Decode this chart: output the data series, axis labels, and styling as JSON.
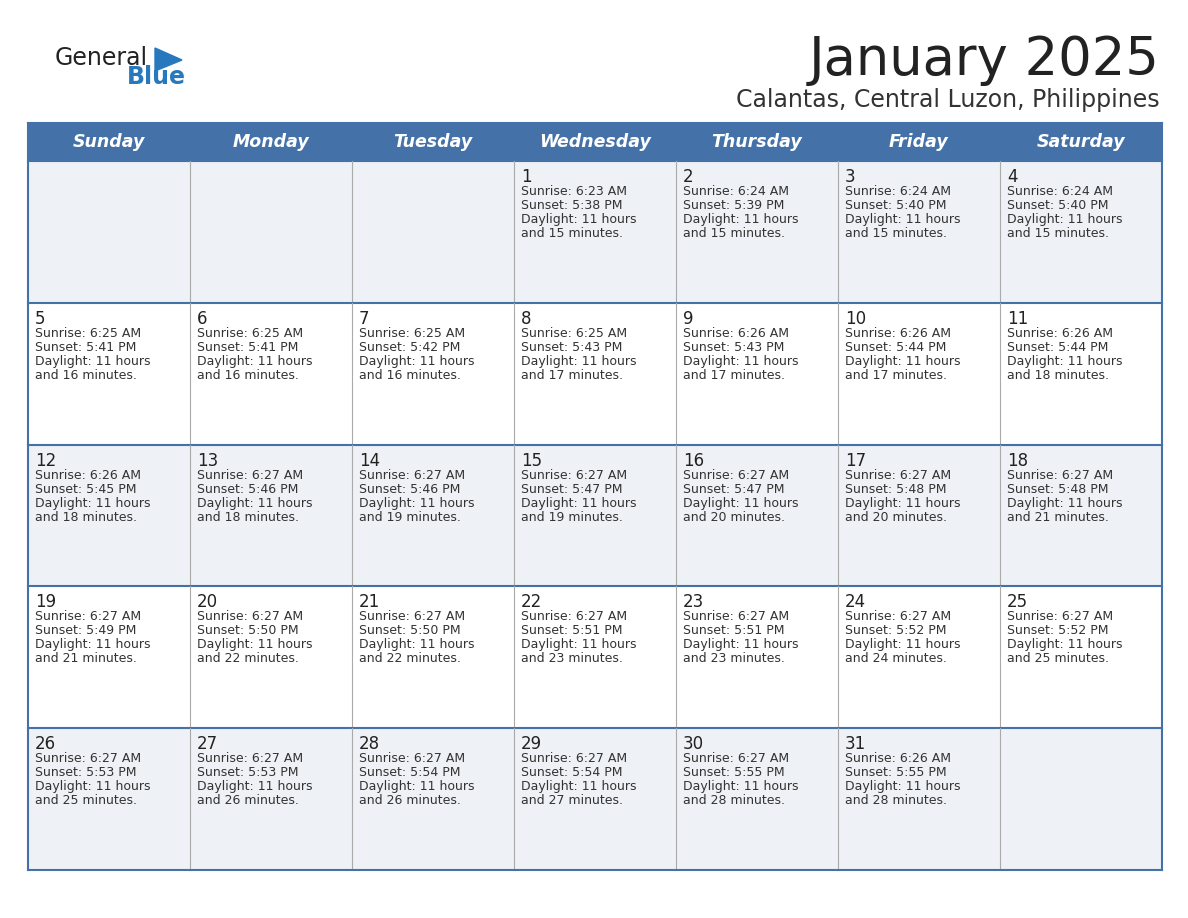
{
  "title": "January 2025",
  "subtitle": "Calantas, Central Luzon, Philippines",
  "days_of_week": [
    "Sunday",
    "Monday",
    "Tuesday",
    "Wednesday",
    "Thursday",
    "Friday",
    "Saturday"
  ],
  "header_bg": "#4472a8",
  "header_text": "#ffffff",
  "cell_bg_odd": "#eef1f5",
  "cell_bg_even": "#ffffff",
  "cell_text": "#333333",
  "day_num_color": "#222222",
  "row_border_color": "#4472a8",
  "col_border_color": "#aaaaaa",
  "title_color": "#222222",
  "subtitle_color": "#333333",
  "generalblue_black": "#222222",
  "generalblue_blue": "#2878be",
  "logo_triangle_color": "#2878be",
  "calendar_data": [
    [
      null,
      null,
      null,
      {
        "day": 1,
        "sunrise": "6:23 AM",
        "sunset": "5:38 PM",
        "daylight": "11 hours\nand 15 minutes."
      },
      {
        "day": 2,
        "sunrise": "6:24 AM",
        "sunset": "5:39 PM",
        "daylight": "11 hours\nand 15 minutes."
      },
      {
        "day": 3,
        "sunrise": "6:24 AM",
        "sunset": "5:40 PM",
        "daylight": "11 hours\nand 15 minutes."
      },
      {
        "day": 4,
        "sunrise": "6:24 AM",
        "sunset": "5:40 PM",
        "daylight": "11 hours\nand 15 minutes."
      }
    ],
    [
      {
        "day": 5,
        "sunrise": "6:25 AM",
        "sunset": "5:41 PM",
        "daylight": "11 hours\nand 16 minutes."
      },
      {
        "day": 6,
        "sunrise": "6:25 AM",
        "sunset": "5:41 PM",
        "daylight": "11 hours\nand 16 minutes."
      },
      {
        "day": 7,
        "sunrise": "6:25 AM",
        "sunset": "5:42 PM",
        "daylight": "11 hours\nand 16 minutes."
      },
      {
        "day": 8,
        "sunrise": "6:25 AM",
        "sunset": "5:43 PM",
        "daylight": "11 hours\nand 17 minutes."
      },
      {
        "day": 9,
        "sunrise": "6:26 AM",
        "sunset": "5:43 PM",
        "daylight": "11 hours\nand 17 minutes."
      },
      {
        "day": 10,
        "sunrise": "6:26 AM",
        "sunset": "5:44 PM",
        "daylight": "11 hours\nand 17 minutes."
      },
      {
        "day": 11,
        "sunrise": "6:26 AM",
        "sunset": "5:44 PM",
        "daylight": "11 hours\nand 18 minutes."
      }
    ],
    [
      {
        "day": 12,
        "sunrise": "6:26 AM",
        "sunset": "5:45 PM",
        "daylight": "11 hours\nand 18 minutes."
      },
      {
        "day": 13,
        "sunrise": "6:27 AM",
        "sunset": "5:46 PM",
        "daylight": "11 hours\nand 18 minutes."
      },
      {
        "day": 14,
        "sunrise": "6:27 AM",
        "sunset": "5:46 PM",
        "daylight": "11 hours\nand 19 minutes."
      },
      {
        "day": 15,
        "sunrise": "6:27 AM",
        "sunset": "5:47 PM",
        "daylight": "11 hours\nand 19 minutes."
      },
      {
        "day": 16,
        "sunrise": "6:27 AM",
        "sunset": "5:47 PM",
        "daylight": "11 hours\nand 20 minutes."
      },
      {
        "day": 17,
        "sunrise": "6:27 AM",
        "sunset": "5:48 PM",
        "daylight": "11 hours\nand 20 minutes."
      },
      {
        "day": 18,
        "sunrise": "6:27 AM",
        "sunset": "5:48 PM",
        "daylight": "11 hours\nand 21 minutes."
      }
    ],
    [
      {
        "day": 19,
        "sunrise": "6:27 AM",
        "sunset": "5:49 PM",
        "daylight": "11 hours\nand 21 minutes."
      },
      {
        "day": 20,
        "sunrise": "6:27 AM",
        "sunset": "5:50 PM",
        "daylight": "11 hours\nand 22 minutes."
      },
      {
        "day": 21,
        "sunrise": "6:27 AM",
        "sunset": "5:50 PM",
        "daylight": "11 hours\nand 22 minutes."
      },
      {
        "day": 22,
        "sunrise": "6:27 AM",
        "sunset": "5:51 PM",
        "daylight": "11 hours\nand 23 minutes."
      },
      {
        "day": 23,
        "sunrise": "6:27 AM",
        "sunset": "5:51 PM",
        "daylight": "11 hours\nand 23 minutes."
      },
      {
        "day": 24,
        "sunrise": "6:27 AM",
        "sunset": "5:52 PM",
        "daylight": "11 hours\nand 24 minutes."
      },
      {
        "day": 25,
        "sunrise": "6:27 AM",
        "sunset": "5:52 PM",
        "daylight": "11 hours\nand 25 minutes."
      }
    ],
    [
      {
        "day": 26,
        "sunrise": "6:27 AM",
        "sunset": "5:53 PM",
        "daylight": "11 hours\nand 25 minutes."
      },
      {
        "day": 27,
        "sunrise": "6:27 AM",
        "sunset": "5:53 PM",
        "daylight": "11 hours\nand 26 minutes."
      },
      {
        "day": 28,
        "sunrise": "6:27 AM",
        "sunset": "5:54 PM",
        "daylight": "11 hours\nand 26 minutes."
      },
      {
        "day": 29,
        "sunrise": "6:27 AM",
        "sunset": "5:54 PM",
        "daylight": "11 hours\nand 27 minutes."
      },
      {
        "day": 30,
        "sunrise": "6:27 AM",
        "sunset": "5:55 PM",
        "daylight": "11 hours\nand 28 minutes."
      },
      {
        "day": 31,
        "sunrise": "6:26 AM",
        "sunset": "5:55 PM",
        "daylight": "11 hours\nand 28 minutes."
      },
      null
    ]
  ]
}
